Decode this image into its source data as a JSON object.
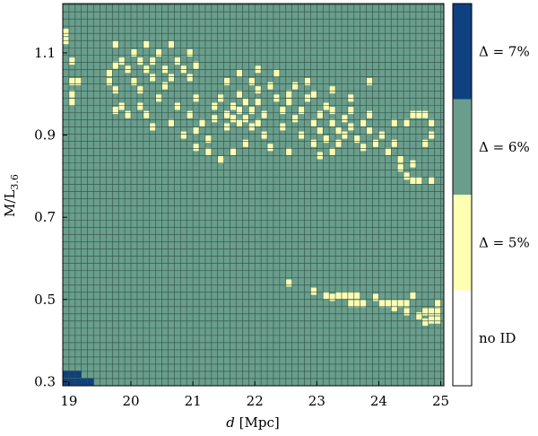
{
  "chart_data": {
    "type": "heatmap",
    "title": "",
    "xlabel": {
      "italic": "d",
      "rest": " [Mpc]"
    },
    "ylabel": "M/L",
    "ylabel_sub": "3.6",
    "xlim": [
      18.9,
      25.05
    ],
    "ylim": [
      0.29,
      1.22
    ],
    "x_ticks": [
      {
        "value": 19,
        "label": "19"
      },
      {
        "value": 20,
        "label": "20"
      },
      {
        "value": 21,
        "label": "21"
      },
      {
        "value": 22,
        "label": "22"
      },
      {
        "value": 23,
        "label": "23"
      },
      {
        "value": 24,
        "label": "24"
      },
      {
        "value": 25,
        "label": "25"
      }
    ],
    "y_ticks": [
      {
        "value": 0.3,
        "label": "0.3"
      },
      {
        "value": 0.5,
        "label": "0.5"
      },
      {
        "value": 0.7,
        "label": "0.7"
      },
      {
        "value": 0.9,
        "label": "0.9"
      },
      {
        "value": 1.1,
        "label": "1.1"
      }
    ],
    "cell_width_mpc": 0.1,
    "cell_height_ml": 0.0175,
    "background_category": "Delta = 6%",
    "legend": [
      {
        "label": "no ID",
        "color": "#ffffff"
      },
      {
        "label": "Δ = 5%",
        "color": "#ffffb2"
      },
      {
        "label": "Δ = 6%",
        "color": "#6a9e8c"
      },
      {
        "label": "Δ = 7%",
        "color": "#0f4080"
      }
    ],
    "colors": {
      "delta5": "#ffffb2",
      "delta6": "#6a9e8c",
      "delta7": "#0f4080",
      "grid": "#2f4f45"
    },
    "cells_delta7": [
      [
        18.9,
        0.3
      ],
      [
        19.0,
        0.3
      ],
      [
        19.1,
        0.3
      ],
      [
        19.2,
        0.3
      ],
      [
        19.3,
        0.3
      ],
      [
        18.9,
        0.318
      ],
      [
        19.0,
        0.318
      ],
      [
        19.1,
        0.318
      ]
    ],
    "cells_delta5": [
      [
        18.9,
        1.15
      ],
      [
        18.9,
        1.13
      ],
      [
        19.0,
        1.08
      ],
      [
        19.0,
        1.03
      ],
      [
        19.1,
        1.03
      ],
      [
        19.0,
        1.0
      ],
      [
        19.0,
        0.98
      ],
      [
        19.7,
        1.12
      ],
      [
        19.7,
        1.07
      ],
      [
        19.6,
        1.05
      ],
      [
        19.6,
        1.03
      ],
      [
        19.7,
        1.01
      ],
      [
        19.8,
        1.08
      ],
      [
        19.9,
        1.06
      ],
      [
        20.0,
        1.1
      ],
      [
        20.1,
        1.08
      ],
      [
        20.2,
        1.12
      ],
      [
        20.2,
        1.06
      ],
      [
        20.3,
        1.08
      ],
      [
        20.3,
        1.04
      ],
      [
        20.4,
        1.1
      ],
      [
        20.5,
        1.06
      ],
      [
        20.6,
        1.12
      ],
      [
        20.6,
        1.04
      ],
      [
        20.7,
        1.08
      ],
      [
        20.8,
        1.06
      ],
      [
        20.9,
        1.1
      ],
      [
        20.9,
        1.04
      ],
      [
        21.0,
        1.07
      ],
      [
        20.0,
        1.03
      ],
      [
        20.1,
        1.01
      ],
      [
        19.8,
        0.97
      ],
      [
        19.7,
        0.96
      ],
      [
        19.9,
        0.95
      ],
      [
        20.1,
        0.97
      ],
      [
        20.4,
        0.99
      ],
      [
        20.5,
        1.02
      ],
      [
        20.2,
        0.95
      ],
      [
        20.6,
        0.93
      ],
      [
        20.3,
        0.92
      ],
      [
        20.7,
        0.97
      ],
      [
        20.9,
        0.95
      ],
      [
        21.0,
        0.99
      ],
      [
        20.8,
        0.9
      ],
      [
        21.0,
        0.91
      ],
      [
        21.1,
        0.93
      ],
      [
        21.2,
        0.89
      ],
      [
        21.3,
        0.94
      ],
      [
        21.3,
        0.97
      ],
      [
        21.4,
        0.99
      ],
      [
        21.5,
        0.95
      ],
      [
        21.5,
        0.92
      ],
      [
        21.6,
        0.97
      ],
      [
        21.6,
        0.94
      ],
      [
        21.7,
        0.93
      ],
      [
        21.7,
        0.96
      ],
      [
        21.7,
        1.0
      ],
      [
        21.8,
        0.98
      ],
      [
        21.8,
        0.94
      ],
      [
        21.9,
        0.96
      ],
      [
        21.9,
        0.92
      ],
      [
        22.0,
        0.98
      ],
      [
        22.0,
        0.93
      ],
      [
        22.1,
        0.95
      ],
      [
        22.1,
        0.9
      ],
      [
        21.5,
        1.03
      ],
      [
        21.7,
        1.05
      ],
      [
        21.9,
        1.03
      ],
      [
        22.0,
        1.01
      ],
      [
        22.2,
        1.02
      ],
      [
        22.3,
        0.99
      ],
      [
        22.4,
        0.96
      ],
      [
        22.4,
        0.92
      ],
      [
        22.5,
        0.98
      ],
      [
        22.6,
        0.94
      ],
      [
        22.7,
        0.96
      ],
      [
        22.7,
        0.9
      ],
      [
        22.8,
        0.99
      ],
      [
        22.9,
        0.93
      ],
      [
        22.9,
        0.88
      ],
      [
        23.0,
        0.95
      ],
      [
        23.0,
        0.91
      ],
      [
        23.1,
        0.97
      ],
      [
        23.1,
        0.89
      ],
      [
        23.2,
        0.93
      ],
      [
        23.2,
        0.96
      ],
      [
        23.3,
        0.91
      ],
      [
        23.3,
        0.88
      ],
      [
        23.4,
        0.94
      ],
      [
        23.4,
        0.9
      ],
      [
        23.5,
        0.92
      ],
      [
        23.5,
        0.96
      ],
      [
        23.6,
        0.89
      ],
      [
        23.7,
        0.93
      ],
      [
        23.7,
        0.87
      ],
      [
        23.8,
        0.91
      ],
      [
        23.8,
        0.95
      ],
      [
        23.9,
        0.88
      ],
      [
        24.0,
        0.9
      ],
      [
        24.1,
        0.86
      ],
      [
        24.2,
        0.88
      ],
      [
        24.3,
        0.84
      ],
      [
        24.3,
        0.82
      ],
      [
        24.4,
        0.8
      ],
      [
        24.5,
        0.83
      ],
      [
        24.5,
        0.79
      ],
      [
        24.6,
        0.79
      ],
      [
        24.8,
        0.79
      ],
      [
        24.4,
        0.93
      ],
      [
        24.5,
        0.95
      ],
      [
        24.6,
        0.95
      ],
      [
        24.7,
        0.95
      ],
      [
        24.8,
        0.93
      ],
      [
        24.8,
        0.9
      ],
      [
        24.7,
        0.88
      ],
      [
        24.2,
        0.93
      ],
      [
        22.5,
        1.0
      ],
      [
        22.3,
        1.05
      ],
      [
        22.0,
        1.06
      ],
      [
        22.6,
        1.02
      ],
      [
        22.8,
        1.03
      ],
      [
        22.9,
        1.0
      ],
      [
        23.2,
        1.01
      ],
      [
        23.5,
        0.99
      ],
      [
        23.8,
        1.03
      ],
      [
        21.0,
        0.87
      ],
      [
        21.2,
        0.86
      ],
      [
        21.4,
        0.84
      ],
      [
        21.6,
        0.86
      ],
      [
        21.8,
        0.88
      ],
      [
        22.2,
        0.87
      ],
      [
        22.5,
        0.86
      ],
      [
        23.0,
        0.85
      ],
      [
        23.2,
        0.86
      ],
      [
        22.5,
        0.54
      ],
      [
        22.9,
        0.52
      ],
      [
        23.1,
        0.51
      ],
      [
        23.2,
        0.505
      ],
      [
        23.3,
        0.51
      ],
      [
        23.4,
        0.51
      ],
      [
        23.5,
        0.51
      ],
      [
        23.5,
        0.49
      ],
      [
        23.6,
        0.51
      ],
      [
        23.6,
        0.49
      ],
      [
        23.7,
        0.49
      ],
      [
        23.9,
        0.505
      ],
      [
        24.0,
        0.49
      ],
      [
        24.1,
        0.49
      ],
      [
        24.2,
        0.49
      ],
      [
        24.3,
        0.49
      ],
      [
        24.4,
        0.49
      ],
      [
        24.5,
        0.51
      ],
      [
        24.4,
        0.47
      ],
      [
        24.2,
        0.48
      ],
      [
        24.6,
        0.46
      ],
      [
        24.7,
        0.47
      ],
      [
        24.8,
        0.47
      ],
      [
        24.8,
        0.45
      ],
      [
        24.9,
        0.49
      ],
      [
        24.9,
        0.47
      ],
      [
        24.9,
        0.45
      ],
      [
        24.7,
        0.445
      ]
    ]
  }
}
